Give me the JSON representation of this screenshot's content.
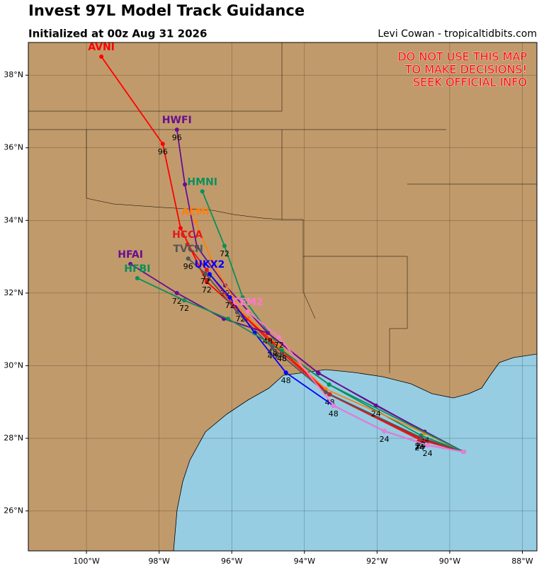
{
  "header": {
    "title": "Invest 97L Model Track Guidance",
    "subtitle": "Initialized at 00z Aug 31 2026",
    "credit": "Levi Cowan - tropicaltidbits.com"
  },
  "warning": [
    "DO NOT USE THIS MAP",
    "TO MAKE DECISIONS!",
    "SEEK OFFICIAL INFO"
  ],
  "map": {
    "xlim": [
      -101.6,
      -87.6
    ],
    "ylim": [
      24.9,
      38.9
    ],
    "xticks": [
      {
        "value": -100,
        "label": "100°W"
      },
      {
        "value": -98,
        "label": "98°W"
      },
      {
        "value": -96,
        "label": "96°W"
      },
      {
        "value": -94,
        "label": "94°W"
      },
      {
        "value": -92,
        "label": "92°W"
      },
      {
        "value": -90,
        "label": "90°W"
      },
      {
        "value": -88,
        "label": "88°W"
      }
    ],
    "yticks": [
      {
        "value": 26,
        "label": "26°N"
      },
      {
        "value": 28,
        "label": "28°N"
      },
      {
        "value": 30,
        "label": "30°N"
      },
      {
        "value": 32,
        "label": "32°N"
      },
      {
        "value": 34,
        "label": "34°N"
      },
      {
        "value": 36,
        "label": "36°N"
      },
      {
        "value": 38,
        "label": "38°N"
      }
    ],
    "tracks": [
      {
        "name": "AVNI",
        "color": "#ff0000",
        "lon": [
          -89.62,
          -90.83,
          -93.3,
          -95.56,
          -96.69,
          -97.41,
          -97.9,
          -99.59
        ],
        "lat": [
          27.63,
          28.0,
          29.21,
          31.29,
          32.31,
          33.79,
          36.11,
          38.51
        ],
        "hours": [
          null,
          24,
          48,
          null,
          72,
          null,
          96,
          null
        ]
      },
      {
        "name": "HWFI",
        "color": "#6a0d91",
        "lon": [
          -89.62,
          -90.69,
          -93.61,
          -95.01,
          -96.18,
          -96.96,
          -97.29,
          -97.51
        ],
        "lat": [
          27.63,
          28.18,
          29.79,
          30.9,
          32.21,
          33.28,
          34.99,
          36.5
        ],
        "hours": [
          null,
          24,
          null,
          48,
          72,
          null,
          null,
          96
        ]
      },
      {
        "name": "HMNI",
        "color": "#0a8f5a",
        "lon": [
          -89.62,
          -90.79,
          -93.32,
          -94.62,
          -95.7,
          -96.2,
          -96.81
        ],
        "lat": [
          27.63,
          28.08,
          29.48,
          30.42,
          31.88,
          33.3,
          34.8
        ],
        "hours": [
          null,
          24,
          null,
          48,
          null,
          72,
          null
        ]
      },
      {
        "name": "AEMI",
        "color": "#ff7f0e",
        "lon": [
          -89.62,
          -90.69,
          -93.42,
          -94.69,
          -95.76,
          -96.53,
          -97.0
        ],
        "lat": [
          27.63,
          28.14,
          29.36,
          30.53,
          31.51,
          32.85,
          33.98
        ],
        "hours": [
          null,
          24,
          null,
          48,
          72,
          null,
          null
        ]
      },
      {
        "name": "HCCA",
        "color": "#e31a1c",
        "lon": [
          -89.62,
          -90.83,
          -93.32,
          -94.88,
          -95.95,
          -96.69,
          -97.22
        ],
        "lat": [
          27.63,
          27.96,
          29.21,
          30.59,
          31.66,
          32.64,
          33.34
        ],
        "hours": [
          null,
          24,
          null,
          48,
          null,
          72,
          null
        ]
      },
      {
        "name": "TVCN",
        "color": "#555555",
        "lon": [
          -89.62,
          -90.79,
          -93.42,
          -94.88,
          -95.85,
          -96.73,
          -97.2
        ],
        "lat": [
          27.63,
          28.02,
          29.27,
          30.49,
          31.47,
          32.54,
          32.95
        ],
        "hours": [
          null,
          24,
          null,
          48,
          null,
          72,
          96
        ]
      },
      {
        "name": "UKX2",
        "color": "#0000ff",
        "lon": [
          -89.62,
          -90.61,
          -91.8,
          -93.2,
          -94.51,
          -95.37,
          -96.05,
          -96.61
        ],
        "lat": [
          27.63,
          27.81,
          28.2,
          28.9,
          29.81,
          30.9,
          31.88,
          32.52
        ],
        "hours": [
          null,
          null,
          24,
          48,
          48,
          null,
          72,
          null
        ]
      },
      {
        "name": "HFAI",
        "color": "#6a0d91",
        "lon": [
          -89.62,
          -92.03,
          -93.63,
          -95.01,
          -96.22,
          -97.51,
          -98.79
        ],
        "lat": [
          27.63,
          28.9,
          29.81,
          30.9,
          31.29,
          32.0,
          32.8
        ],
        "hours": [
          null,
          24,
          null,
          48,
          null,
          72,
          null
        ]
      },
      {
        "name": "HFBI",
        "color": "#0a8f5a",
        "lon": [
          -89.62,
          -93.32,
          -94.62,
          -96.1,
          -97.31,
          -98.6
        ],
        "lat": [
          27.63,
          29.48,
          30.42,
          31.29,
          31.8,
          32.41
        ],
        "hours": [
          null,
          null,
          48,
          null,
          72,
          null
        ]
      },
      {
        "name": "CEM2",
        "color": "#ff77d0",
        "lon": [
          -89.62,
          -90.61,
          -91.8,
          -93.2,
          -94.7,
          -95.56
        ],
        "lat": [
          27.63,
          27.81,
          28.2,
          28.9,
          30.79,
          31.49
        ],
        "hours": [
          null,
          24,
          null,
          null,
          72,
          null
        ]
      }
    ]
  }
}
